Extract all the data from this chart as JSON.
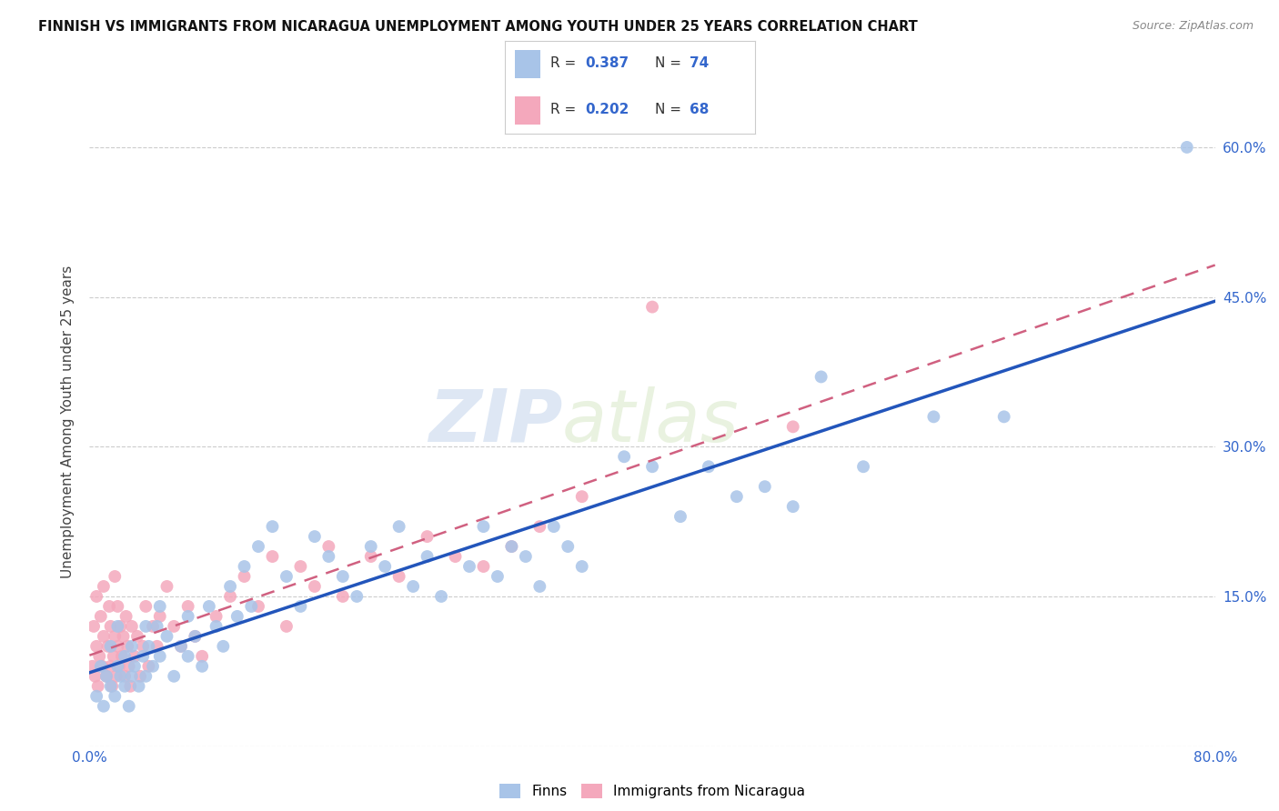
{
  "title": "FINNISH VS IMMIGRANTS FROM NICARAGUA UNEMPLOYMENT AMONG YOUTH UNDER 25 YEARS CORRELATION CHART",
  "source": "Source: ZipAtlas.com",
  "ylabel": "Unemployment Among Youth under 25 years",
  "x_min": 0.0,
  "x_max": 0.8,
  "y_min": 0.0,
  "y_max": 0.65,
  "y_ticks": [
    0.0,
    0.15,
    0.3,
    0.45,
    0.6
  ],
  "finns_color": "#a8c4e8",
  "nicaragua_color": "#f4a8bc",
  "finns_line_color": "#2255bb",
  "nicaragua_line_color": "#d06080",
  "legend_r_color": "#3366cc",
  "watermark_zip": "ZIP",
  "watermark_atlas": "atlas",
  "finns_R": 0.387,
  "finns_N": 74,
  "nicaragua_R": 0.202,
  "nicaragua_N": 68,
  "finns_x": [
    0.005,
    0.008,
    0.01,
    0.012,
    0.015,
    0.015,
    0.018,
    0.02,
    0.02,
    0.022,
    0.025,
    0.025,
    0.028,
    0.03,
    0.03,
    0.032,
    0.035,
    0.038,
    0.04,
    0.04,
    0.042,
    0.045,
    0.048,
    0.05,
    0.05,
    0.055,
    0.06,
    0.065,
    0.07,
    0.07,
    0.075,
    0.08,
    0.085,
    0.09,
    0.095,
    0.1,
    0.105,
    0.11,
    0.115,
    0.12,
    0.13,
    0.14,
    0.15,
    0.16,
    0.17,
    0.18,
    0.19,
    0.2,
    0.21,
    0.22,
    0.23,
    0.24,
    0.25,
    0.27,
    0.28,
    0.29,
    0.3,
    0.31,
    0.32,
    0.33,
    0.34,
    0.35,
    0.38,
    0.4,
    0.42,
    0.44,
    0.46,
    0.48,
    0.5,
    0.52,
    0.55,
    0.6,
    0.65,
    0.78
  ],
  "finns_y": [
    0.05,
    0.08,
    0.04,
    0.07,
    0.06,
    0.1,
    0.05,
    0.08,
    0.12,
    0.07,
    0.06,
    0.09,
    0.04,
    0.07,
    0.1,
    0.08,
    0.06,
    0.09,
    0.07,
    0.12,
    0.1,
    0.08,
    0.12,
    0.09,
    0.14,
    0.11,
    0.07,
    0.1,
    0.09,
    0.13,
    0.11,
    0.08,
    0.14,
    0.12,
    0.1,
    0.16,
    0.13,
    0.18,
    0.14,
    0.2,
    0.22,
    0.17,
    0.14,
    0.21,
    0.19,
    0.17,
    0.15,
    0.2,
    0.18,
    0.22,
    0.16,
    0.19,
    0.15,
    0.18,
    0.22,
    0.17,
    0.2,
    0.19,
    0.16,
    0.22,
    0.2,
    0.18,
    0.29,
    0.28,
    0.23,
    0.28,
    0.25,
    0.26,
    0.24,
    0.37,
    0.28,
    0.33,
    0.33,
    0.6
  ],
  "nicaragua_x": [
    0.002,
    0.003,
    0.004,
    0.005,
    0.005,
    0.006,
    0.007,
    0.008,
    0.009,
    0.01,
    0.01,
    0.012,
    0.013,
    0.014,
    0.015,
    0.015,
    0.016,
    0.017,
    0.018,
    0.018,
    0.019,
    0.02,
    0.02,
    0.021,
    0.022,
    0.023,
    0.024,
    0.025,
    0.026,
    0.027,
    0.028,
    0.029,
    0.03,
    0.032,
    0.034,
    0.036,
    0.038,
    0.04,
    0.042,
    0.045,
    0.048,
    0.05,
    0.055,
    0.06,
    0.065,
    0.07,
    0.075,
    0.08,
    0.09,
    0.1,
    0.11,
    0.12,
    0.13,
    0.14,
    0.15,
    0.16,
    0.17,
    0.18,
    0.2,
    0.22,
    0.24,
    0.26,
    0.28,
    0.3,
    0.32,
    0.35,
    0.4,
    0.5
  ],
  "nicaragua_y": [
    0.08,
    0.12,
    0.07,
    0.1,
    0.15,
    0.06,
    0.09,
    0.13,
    0.08,
    0.11,
    0.16,
    0.07,
    0.1,
    0.14,
    0.08,
    0.12,
    0.06,
    0.09,
    0.11,
    0.17,
    0.07,
    0.1,
    0.14,
    0.08,
    0.12,
    0.09,
    0.11,
    0.07,
    0.13,
    0.1,
    0.08,
    0.06,
    0.12,
    0.09,
    0.11,
    0.07,
    0.1,
    0.14,
    0.08,
    0.12,
    0.1,
    0.13,
    0.16,
    0.12,
    0.1,
    0.14,
    0.11,
    0.09,
    0.13,
    0.15,
    0.17,
    0.14,
    0.19,
    0.12,
    0.18,
    0.16,
    0.2,
    0.15,
    0.19,
    0.17,
    0.21,
    0.19,
    0.18,
    0.2,
    0.22,
    0.25,
    0.44,
    0.32
  ],
  "background_color": "#ffffff",
  "grid_color": "#cccccc"
}
